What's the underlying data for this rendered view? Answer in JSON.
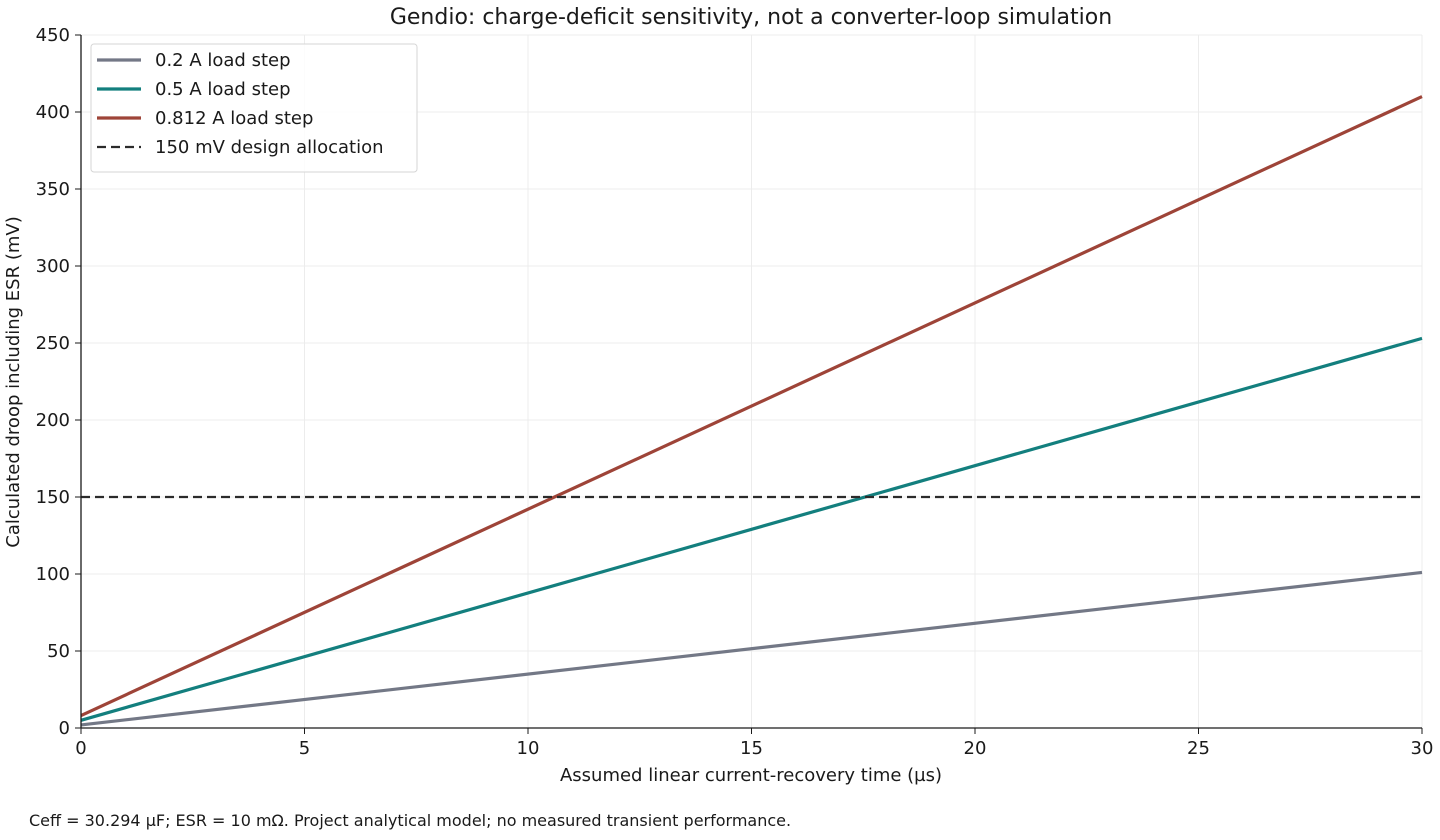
{
  "chart_data": {
    "type": "line",
    "title": "Gendio: charge-deficit sensitivity, not a converter-loop simulation",
    "xlabel": "Assumed linear current-recovery time (µs)",
    "ylabel": "Calculated droop including ESR (mV)",
    "xlim": [
      0,
      30
    ],
    "ylim": [
      0,
      450
    ],
    "xticks": [
      0,
      5,
      10,
      15,
      20,
      25,
      30
    ],
    "yticks": [
      0,
      50,
      100,
      150,
      200,
      250,
      300,
      350,
      400,
      450
    ],
    "grid": true,
    "legend_position": "top-left",
    "series": [
      {
        "name": "0.2 A load step",
        "color": "#737886",
        "style": "solid",
        "x": [
          0,
          30
        ],
        "y": [
          2,
          101
        ]
      },
      {
        "name": "0.5 A load step",
        "color": "#137f7e",
        "style": "solid",
        "x": [
          0,
          30
        ],
        "y": [
          5,
          253
        ]
      },
      {
        "name": "0.812 A load step",
        "color": "#9e4438",
        "style": "solid",
        "x": [
          0,
          30
        ],
        "y": [
          8.1,
          410
        ]
      },
      {
        "name": "150 mV design allocation",
        "color": "#2b2b2b",
        "style": "dashed",
        "x": [
          0,
          30
        ],
        "y": [
          150,
          150
        ]
      }
    ]
  },
  "footnote": "Ceff = 30.294 µF; ESR = 10 mΩ. Project analytical model; no measured transient performance."
}
